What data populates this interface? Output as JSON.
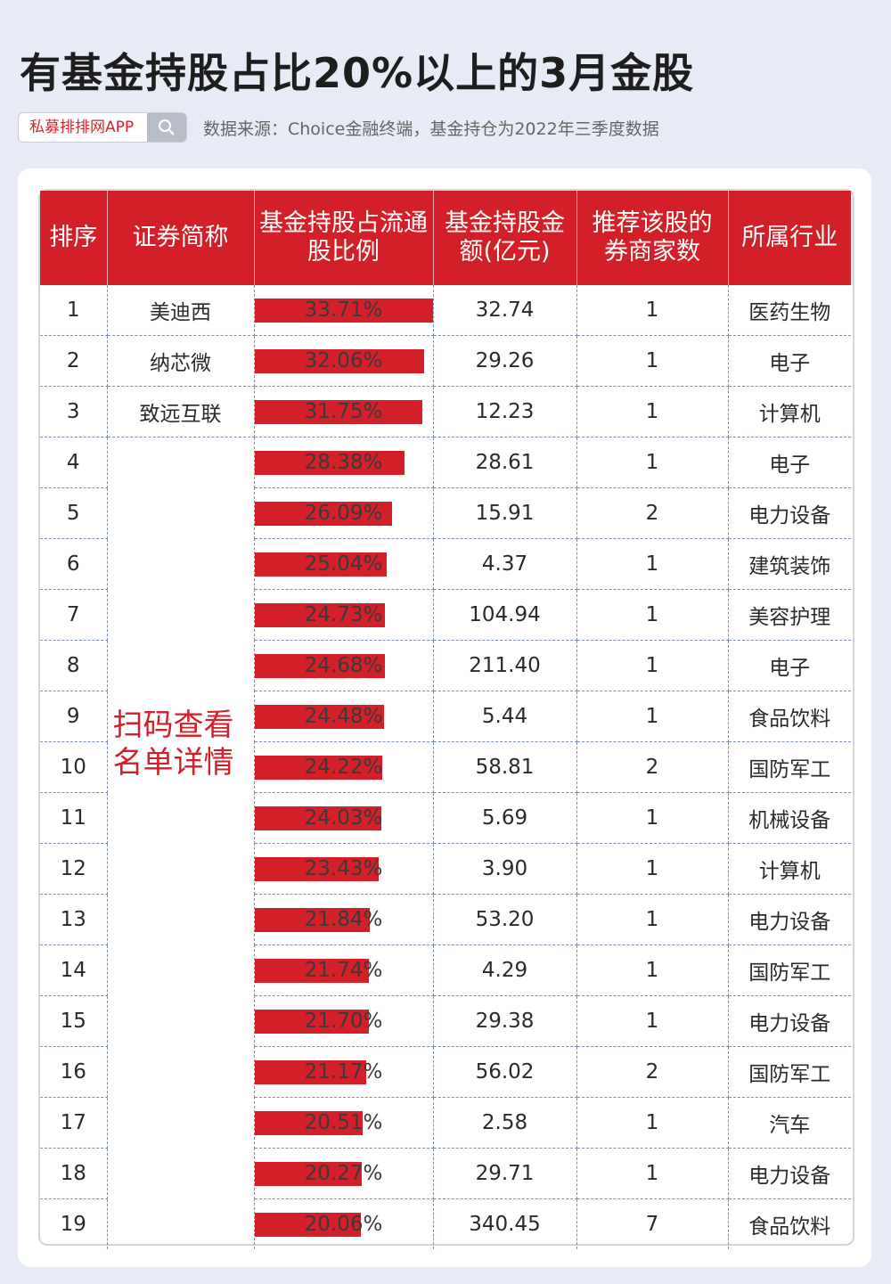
{
  "title": "有基金持股占比20%以上的3月金股",
  "search_box": {
    "brand": "私募排排网APP"
  },
  "source": "数据来源：Choice金融终端，基金持仓为2022年三季度数据",
  "note": "扫码查看名单详情",
  "colors": {
    "accent": "#d21f28",
    "background": "#e6ebf5"
  },
  "chart_data": {
    "type": "table",
    "columns": [
      "排序",
      "证券简称",
      "基金持股占流通股比例",
      "基金持股金额(亿元)",
      "推荐该股的券商家数",
      "所属行业"
    ],
    "bar_max": 33.71,
    "rows": [
      {
        "rank": "1",
        "name": "美迪西",
        "pct": 33.71,
        "pct_label": "33.71%",
        "amount": "32.74",
        "brokers": "1",
        "industry": "医药生物"
      },
      {
        "rank": "2",
        "name": "纳芯微",
        "pct": 32.06,
        "pct_label": "32.06%",
        "amount": "29.26",
        "brokers": "1",
        "industry": "电子"
      },
      {
        "rank": "3",
        "name": "致远互联",
        "pct": 31.75,
        "pct_label": "31.75%",
        "amount": "12.23",
        "brokers": "1",
        "industry": "计算机"
      },
      {
        "rank": "4",
        "name": "",
        "pct": 28.38,
        "pct_label": "28.38%",
        "amount": "28.61",
        "brokers": "1",
        "industry": "电子"
      },
      {
        "rank": "5",
        "name": "",
        "pct": 26.09,
        "pct_label": "26.09%",
        "amount": "15.91",
        "brokers": "2",
        "industry": "电力设备"
      },
      {
        "rank": "6",
        "name": "",
        "pct": 25.04,
        "pct_label": "25.04%",
        "amount": "4.37",
        "brokers": "1",
        "industry": "建筑装饰"
      },
      {
        "rank": "7",
        "name": "",
        "pct": 24.73,
        "pct_label": "24.73%",
        "amount": "104.94",
        "brokers": "1",
        "industry": "美容护理"
      },
      {
        "rank": "8",
        "name": "",
        "pct": 24.68,
        "pct_label": "24.68%",
        "amount": "211.40",
        "brokers": "1",
        "industry": "电子"
      },
      {
        "rank": "9",
        "name": "",
        "pct": 24.48,
        "pct_label": "24.48%",
        "amount": "5.44",
        "brokers": "1",
        "industry": "食品饮料"
      },
      {
        "rank": "10",
        "name": "",
        "pct": 24.22,
        "pct_label": "24.22%",
        "amount": "58.81",
        "brokers": "2",
        "industry": "国防军工"
      },
      {
        "rank": "11",
        "name": "",
        "pct": 24.03,
        "pct_label": "24.03%",
        "amount": "5.69",
        "brokers": "1",
        "industry": "机械设备"
      },
      {
        "rank": "12",
        "name": "",
        "pct": 23.43,
        "pct_label": "23.43%",
        "amount": "3.90",
        "brokers": "1",
        "industry": "计算机"
      },
      {
        "rank": "13",
        "name": "",
        "pct": 21.84,
        "pct_label": "21.84%",
        "amount": "53.20",
        "brokers": "1",
        "industry": "电力设备"
      },
      {
        "rank": "14",
        "name": "",
        "pct": 21.74,
        "pct_label": "21.74%",
        "amount": "4.29",
        "brokers": "1",
        "industry": "国防军工"
      },
      {
        "rank": "15",
        "name": "",
        "pct": 21.7,
        "pct_label": "21.70%",
        "amount": "29.38",
        "brokers": "1",
        "industry": "电力设备"
      },
      {
        "rank": "16",
        "name": "",
        "pct": 21.17,
        "pct_label": "21.17%",
        "amount": "56.02",
        "brokers": "2",
        "industry": "国防军工"
      },
      {
        "rank": "17",
        "name": "",
        "pct": 20.51,
        "pct_label": "20.51%",
        "amount": "2.58",
        "brokers": "1",
        "industry": "汽车"
      },
      {
        "rank": "18",
        "name": "",
        "pct": 20.27,
        "pct_label": "20.27%",
        "amount": "29.71",
        "brokers": "1",
        "industry": "电力设备"
      },
      {
        "rank": "19",
        "name": "",
        "pct": 20.06,
        "pct_label": "20.06%",
        "amount": "340.45",
        "brokers": "7",
        "industry": "食品饮料"
      }
    ]
  }
}
